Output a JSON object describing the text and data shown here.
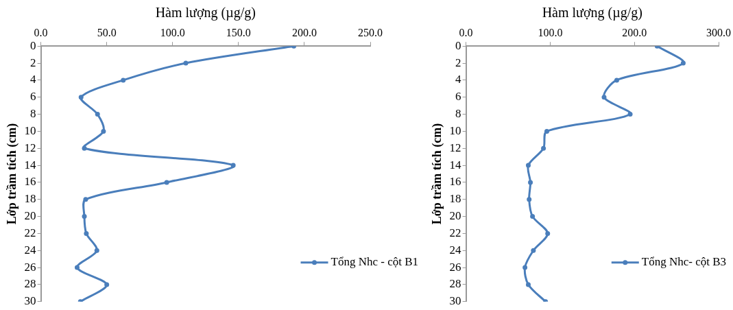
{
  "chart_data": [
    {
      "type": "line",
      "xlabel": "Hàm lượng (µg/g)",
      "ylabel": "Lớp trầm tích (cm)",
      "xlim": [
        0,
        250
      ],
      "xticks": [
        {
          "value": 0,
          "label": "0.0"
        },
        {
          "value": 50,
          "label": "50.0"
        },
        {
          "value": 100,
          "label": "100.0"
        },
        {
          "value": 150,
          "label": "150.0"
        },
        {
          "value": 200,
          "label": "200.0"
        },
        {
          "value": 250,
          "label": "250.0"
        }
      ],
      "ylim": [
        30,
        0
      ],
      "yticks": [
        0,
        2,
        4,
        6,
        8,
        10,
        12,
        14,
        16,
        18,
        20,
        22,
        24,
        26,
        28,
        30
      ],
      "series": [
        {
          "name": "Tổng Nhc - cột B1",
          "color": "#4a7ebb",
          "x": [
            192,
            110,
            62.5,
            30.5,
            43,
            47.5,
            33,
            146,
            95.5,
            34,
            33,
            34.5,
            42.5,
            27.5,
            50,
            30
          ],
          "values": [
            0,
            2,
            4,
            6,
            8,
            10,
            12,
            14,
            16,
            18,
            20,
            22,
            24,
            26,
            28,
            30
          ]
        }
      ],
      "legend": "right",
      "marker": "circle",
      "grid": false
    },
    {
      "type": "line",
      "xlabel": "Hàm lượng (µg/g)",
      "ylabel": "Lớp trầm tích (cm)",
      "xlim": [
        0,
        300
      ],
      "xticks": [
        {
          "value": 0,
          "label": "0.0"
        },
        {
          "value": 100,
          "label": "100.0"
        },
        {
          "value": 200,
          "label": "200.0"
        },
        {
          "value": 300,
          "label": "300.0"
        }
      ],
      "ylim": [
        30,
        0
      ],
      "yticks": [
        0,
        2,
        4,
        6,
        8,
        10,
        12,
        14,
        16,
        18,
        20,
        22,
        24,
        26,
        28,
        30
      ],
      "series": [
        {
          "name": "Tổng Nhc- cột B3",
          "color": "#4a7ebb",
          "x": [
            227,
            258,
            179,
            164,
            195,
            96,
            92,
            74,
            76.5,
            75,
            79,
            97,
            80,
            70,
            74,
            94.5
          ],
          "values": [
            0,
            2,
            4,
            6,
            8,
            10,
            12,
            14,
            16,
            18,
            20,
            22,
            24,
            26,
            28,
            30
          ]
        }
      ],
      "legend": "right",
      "marker": "circle",
      "grid": false
    }
  ]
}
